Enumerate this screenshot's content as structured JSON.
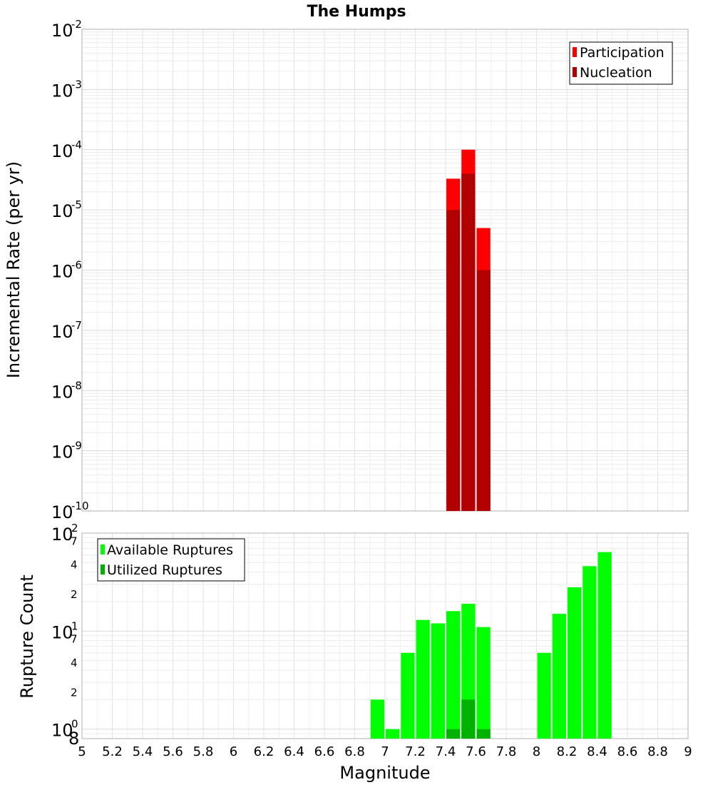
{
  "chart_data": [
    {
      "type": "bar",
      "title": "The Humps",
      "xlabel": "",
      "ylabel": "Incremental Rate (per yr)",
      "yscale": "log",
      "ylim": [
        1e-10,
        0.01
      ],
      "xlim": [
        5,
        9
      ],
      "y_ticks": [
        {
          "base": "10",
          "exp": "-10"
        },
        {
          "base": "10",
          "exp": "-9"
        },
        {
          "base": "10",
          "exp": "-8"
        },
        {
          "base": "10",
          "exp": "-7"
        },
        {
          "base": "10",
          "exp": "-6"
        },
        {
          "base": "10",
          "exp": "-5"
        },
        {
          "base": "10",
          "exp": "-4"
        },
        {
          "base": "10",
          "exp": "-3"
        },
        {
          "base": "10",
          "exp": "-2"
        }
      ],
      "series": [
        {
          "name": "Participation",
          "color": "#ff0000",
          "x": [
            7.45,
            7.55,
            7.65
          ],
          "values": [
            3.3e-05,
            0.0001,
            5e-06
          ]
        },
        {
          "name": "Nucleation",
          "color": "#b20000",
          "x": [
            7.45,
            7.55,
            7.65
          ],
          "values": [
            1e-05,
            4e-05,
            1e-06
          ]
        }
      ],
      "legend": {
        "position": "top-right",
        "items": [
          "Participation",
          "Nucleation"
        ]
      }
    },
    {
      "type": "bar",
      "title": "",
      "xlabel": "Magnitude",
      "ylabel": "Rupture Count",
      "yscale": "log",
      "ylim": [
        0.8,
        100
      ],
      "xlim": [
        5,
        9
      ],
      "y_ticks": [
        {
          "base": "10",
          "exp": "0"
        },
        {
          "base": "10",
          "exp": "1"
        },
        {
          "base": "10",
          "exp": "2"
        }
      ],
      "y_minor_labels": [
        {
          "value": 0.8,
          "label": "8"
        },
        {
          "value": 2,
          "label": "2"
        },
        {
          "value": 4,
          "label": "4"
        },
        {
          "value": 7,
          "label": "7"
        },
        {
          "value": 20,
          "label": "2"
        },
        {
          "value": 40,
          "label": "4"
        },
        {
          "value": 70,
          "label": "7"
        }
      ],
      "x_ticks": [
        "5",
        "5.2",
        "5.4",
        "5.6",
        "5.8",
        "6",
        "6.2",
        "6.4",
        "6.6",
        "6.8",
        "7",
        "7.2",
        "7.4",
        "7.6",
        "7.8",
        "8",
        "8.2",
        "8.4",
        "8.6",
        "8.8",
        "9"
      ],
      "series": [
        {
          "name": "Available Ruptures",
          "color": "#00ff00",
          "x": [
            6.95,
            7.05,
            7.15,
            7.25,
            7.35,
            7.45,
            7.55,
            7.65,
            8.05,
            8.15,
            8.25,
            8.35,
            8.45
          ],
          "values": [
            2,
            1,
            6,
            13,
            12,
            16,
            19,
            11,
            6,
            15,
            28,
            46,
            64
          ]
        },
        {
          "name": "Utilized Ruptures",
          "color": "#00b200",
          "x": [
            7.45,
            7.55,
            7.65
          ],
          "values": [
            1,
            2,
            1
          ]
        }
      ],
      "legend": {
        "position": "top-left",
        "items": [
          "Available Ruptures",
          "Utilized Ruptures"
        ]
      }
    }
  ]
}
